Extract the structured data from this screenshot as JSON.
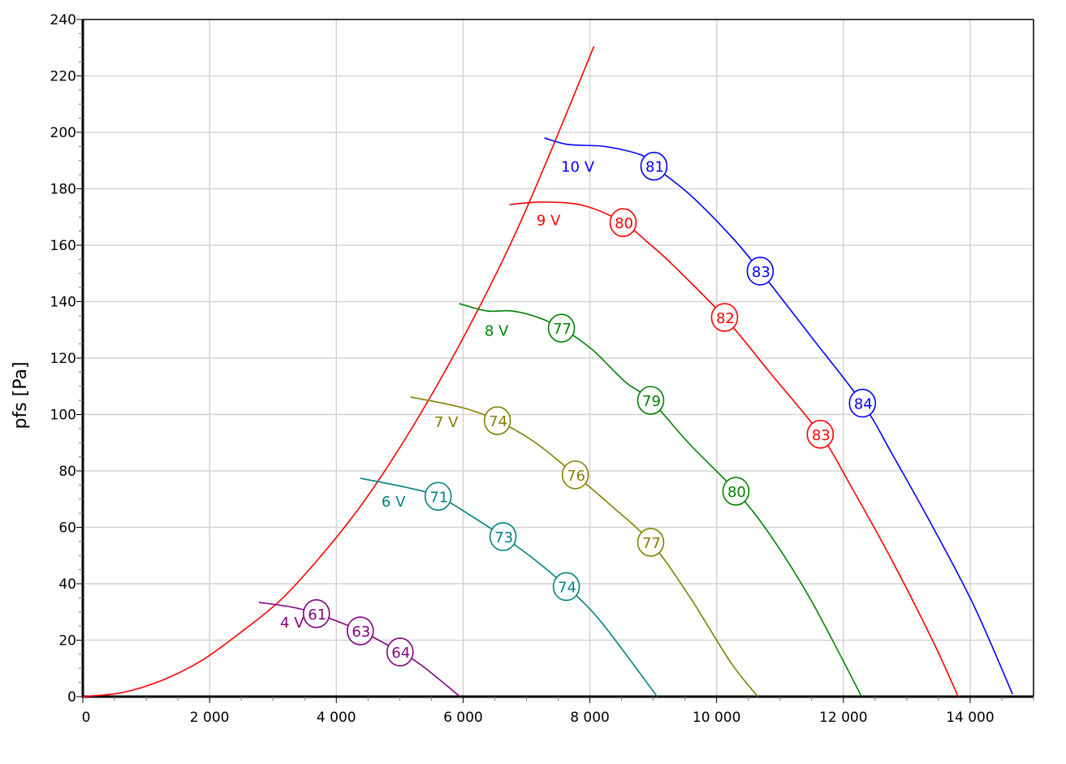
{
  "chart_data": {
    "type": "line",
    "title": "",
    "xlabel": "",
    "ylabel": "pfs [Pa]",
    "xlim": [
      0,
      15000
    ],
    "ylim": [
      0,
      240
    ],
    "x_major_step": 2000,
    "x_minor_step": 500,
    "y_major_step": 20,
    "y_minor_step": 5,
    "grid": true,
    "x_tick_labels": [
      "0",
      "2 000",
      "4 000",
      "6 000",
      "8 000",
      "10 000",
      "12 000",
      "14 000"
    ],
    "y_tick_labels": [
      "0",
      "20",
      "40",
      "60",
      "80",
      "100",
      "120",
      "140",
      "160",
      "180",
      "200",
      "220",
      "240"
    ],
    "system_curve": {
      "color": "#ff0000",
      "points": [
        [
          0,
          0
        ],
        [
          615,
          1.4
        ],
        [
          1254,
          5.8
        ],
        [
          1869,
          12.7
        ],
        [
          2470,
          22.4
        ],
        [
          3110,
          34
        ],
        [
          3725,
          49
        ],
        [
          4365,
          67
        ],
        [
          4966,
          87
        ],
        [
          5606,
          111
        ],
        [
          6246,
          137.6
        ],
        [
          6822,
          164
        ],
        [
          7398,
          194
        ],
        [
          8064,
          230.5
        ]
      ]
    },
    "series": [
      {
        "name": "10 V",
        "color": "#0000ff",
        "label_at": [
          7808,
          188
        ],
        "points": [
          [
            7283,
            198
          ],
          [
            7654,
            195.7
          ],
          [
            8230,
            195
          ],
          [
            8806,
            192
          ],
          [
            9011,
            188
          ],
          [
            9574,
            178
          ],
          [
            10214,
            163.5
          ],
          [
            10688,
            150.8
          ],
          [
            11494,
            127.5
          ],
          [
            12301,
            104
          ],
          [
            12774,
            85.8
          ],
          [
            13414,
            60
          ],
          [
            14054,
            32.5
          ],
          [
            14669,
            0.9
          ]
        ],
        "markers": [
          {
            "x": 9011,
            "y": 188,
            "text": "81"
          },
          {
            "x": 10688,
            "y": 150.8,
            "text": "83"
          },
          {
            "x": 12301,
            "y": 104,
            "text": "84"
          }
        ]
      },
      {
        "name": "9 V",
        "color": "#ff0000",
        "label_at": [
          7347,
          169
        ],
        "points": [
          [
            6733,
            174.4
          ],
          [
            7270,
            175.3
          ],
          [
            7910,
            174
          ],
          [
            8525,
            168
          ],
          [
            8934,
            160.6
          ],
          [
            9318,
            152.8
          ],
          [
            10125,
            134.4
          ],
          [
            10854,
            114.5
          ],
          [
            11635,
            93
          ],
          [
            12134,
            74
          ],
          [
            12774,
            48
          ],
          [
            13414,
            19.6
          ],
          [
            13811,
            0
          ]
        ],
        "markers": [
          {
            "x": 8525,
            "y": 168,
            "text": "80"
          },
          {
            "x": 10125,
            "y": 134.4,
            "text": "82"
          },
          {
            "x": 11635,
            "y": 93,
            "text": "83"
          }
        ]
      },
      {
        "name": "8 V",
        "color": "#008000",
        "label_at": [
          6528,
          130
        ],
        "points": [
          [
            5939,
            139.3
          ],
          [
            6374,
            136.7
          ],
          [
            6758,
            136.7
          ],
          [
            7142,
            134.7
          ],
          [
            7552,
            130.6
          ],
          [
            8038,
            123
          ],
          [
            8550,
            111.7
          ],
          [
            8960,
            105
          ],
          [
            9574,
            89.5
          ],
          [
            10304,
            72.8
          ],
          [
            10854,
            57
          ],
          [
            11494,
            34
          ],
          [
            12288,
            0
          ]
        ],
        "markers": [
          {
            "x": 7552,
            "y": 130.6,
            "text": "77"
          },
          {
            "x": 8960,
            "y": 105,
            "text": "79"
          },
          {
            "x": 10304,
            "y": 72.8,
            "text": "80"
          }
        ]
      },
      {
        "name": "7 V",
        "color": "#808000",
        "label_at": [
          5734,
          97.5
        ],
        "points": [
          [
            5171,
            106.2
          ],
          [
            5990,
            102.4
          ],
          [
            6541,
            97.8
          ],
          [
            7142,
            90
          ],
          [
            7770,
            78.6
          ],
          [
            8294,
            68.5
          ],
          [
            8960,
            54.7
          ],
          [
            9574,
            35.4
          ],
          [
            10214,
            12.4
          ],
          [
            10650,
            0
          ]
        ],
        "markers": [
          {
            "x": 6541,
            "y": 97.8,
            "text": "74"
          },
          {
            "x": 7770,
            "y": 78.6,
            "text": "76"
          },
          {
            "x": 8960,
            "y": 54.7,
            "text": "77"
          }
        ]
      },
      {
        "name": "6 V",
        "color": "#008080",
        "label_at": [
          4902,
          69.4
        ],
        "points": [
          [
            4378,
            77.4
          ],
          [
            5094,
            74.2
          ],
          [
            5606,
            71
          ],
          [
            6118,
            64.2
          ],
          [
            6630,
            56.7
          ],
          [
            7142,
            48.3
          ],
          [
            7629,
            39
          ],
          [
            8166,
            26.8
          ],
          [
            9062,
            0
          ]
        ],
        "markers": [
          {
            "x": 5606,
            "y": 71,
            "text": "71"
          },
          {
            "x": 6630,
            "y": 56.7,
            "text": "73"
          },
          {
            "x": 7629,
            "y": 39,
            "text": "74"
          }
        ]
      },
      {
        "name": "4 V",
        "color": "#800080",
        "label_at": [
          3302,
          26.5
        ],
        "points": [
          [
            2778,
            33.4
          ],
          [
            3302,
            31.7
          ],
          [
            3686,
            29.4
          ],
          [
            4378,
            23.3
          ],
          [
            5005,
            15.8
          ],
          [
            5350,
            11
          ],
          [
            5952,
            0
          ]
        ],
        "markers": [
          {
            "x": 3686,
            "y": 29.4,
            "text": "61"
          },
          {
            "x": 4378,
            "y": 23.3,
            "text": "63"
          },
          {
            "x": 5005,
            "y": 15.8,
            "text": "64"
          }
        ]
      }
    ]
  }
}
